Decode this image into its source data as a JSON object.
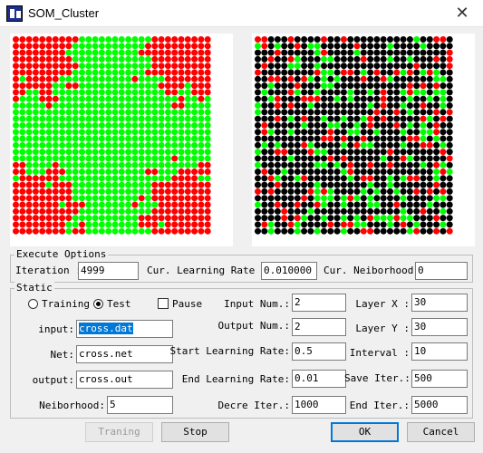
{
  "window": {
    "title": "SOM_Cluster",
    "close_icon": "close-icon"
  },
  "som": {
    "rows": 30,
    "cols": 30,
    "colors": {
      "red": "#ff0000",
      "green": "#00ff00",
      "black": "#000000",
      "background": "#ffffff"
    }
  },
  "execute_options": {
    "legend": "Execute Options",
    "iteration_label": "Iteration :",
    "iteration_value": "4999",
    "cur_learning_rate_label": "Cur. Learning Rate :",
    "cur_learning_rate_value": "0.010000",
    "cur_neiborhood_label": "Cur. Neiborhood:",
    "cur_neiborhood_value": "0"
  },
  "static": {
    "legend": "Static",
    "mode_training_label": "Training",
    "mode_test_label": "Test",
    "mode_selected": "Test",
    "pause_label": "Pause",
    "pause_checked": false,
    "input_label": "input:",
    "input_value": "cross.dat",
    "net_label": "Net:",
    "net_value": "cross.net",
    "output_label": "output:",
    "output_value": "cross.out",
    "neiborhood_label": "Neiborhood:",
    "neiborhood_value": "5",
    "input_num_label": "Input Num.:",
    "input_num_value": "2",
    "output_num_label": "Output Num.:",
    "output_num_value": "2",
    "start_lr_label": "Start Learning Rate:",
    "start_lr_value": "0.5",
    "end_lr_label": "End Learning Rate:",
    "end_lr_value": "0.01",
    "decre_iter_label": "Decre Iter.:",
    "decre_iter_value": "1000",
    "layer_x_label": "Layer X :",
    "layer_x_value": "30",
    "layer_y_label": "Layer Y :",
    "layer_y_value": "30",
    "interval_label": "Interval :",
    "interval_value": "10",
    "save_iter_label": "Save Iter.:",
    "save_iter_value": "500",
    "end_iter_label": "End Iter.:",
    "end_iter_value": "5000"
  },
  "buttons": {
    "training": "Traning",
    "stop": "Stop",
    "ok": "OK",
    "cancel": "Cancel"
  }
}
